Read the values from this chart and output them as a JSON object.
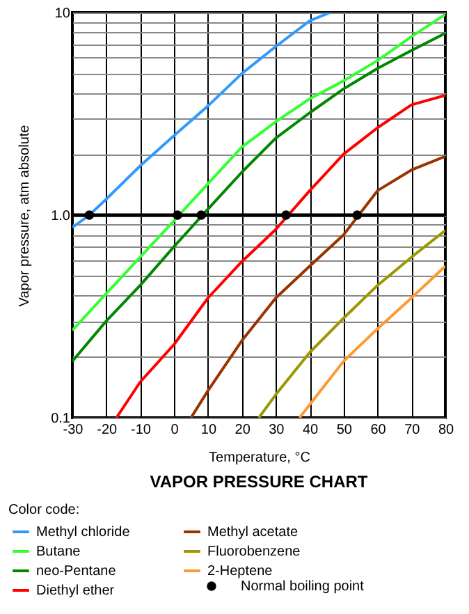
{
  "chart_data": {
    "type": "line",
    "title": "VAPOR PRESSURE CHART",
    "xlabel": "Temperature, °C",
    "ylabel": "Vapor pressure, atm absolute",
    "legend_title": "Color code:",
    "series": [
      {
        "name": "Methyl chloride",
        "color": "#3399ff",
        "x": [
          -30,
          -25,
          -20,
          -10,
          0,
          10,
          20,
          30,
          40,
          46
        ],
        "values": [
          0.87,
          1.0,
          1.2,
          1.75,
          2.47,
          3.46,
          5.0,
          6.8,
          9.1,
          10
        ]
      },
      {
        "name": "Butane",
        "color": "#33ff33",
        "x": [
          -30,
          -20,
          -10,
          0,
          10,
          20,
          30,
          40,
          50,
          60,
          70,
          80
        ],
        "values": [
          0.27,
          0.41,
          0.62,
          0.94,
          1.43,
          2.17,
          2.89,
          3.75,
          4.6,
          5.8,
          7.6,
          9.8
        ]
      },
      {
        "name": "neo-Pentane",
        "color": "#008800",
        "x": [
          -30,
          -20,
          -10,
          0,
          10,
          20,
          30,
          40,
          50,
          60,
          70,
          80
        ],
        "values": [
          0.19,
          0.3,
          0.45,
          0.7,
          1.07,
          1.63,
          2.4,
          3.2,
          4.2,
          5.3,
          6.5,
          7.9
        ]
      },
      {
        "name": "Diethyl ether",
        "color": "#ff0000",
        "x": [
          -17,
          -10,
          0,
          10,
          20,
          30,
          40,
          50,
          60,
          70,
          80
        ],
        "values": [
          0.1,
          0.15,
          0.23,
          0.39,
          0.59,
          0.85,
          1.32,
          2.0,
          2.7,
          3.5,
          3.9
        ]
      },
      {
        "name": "Methyl acetate",
        "color": "#993300",
        "x": [
          5,
          10,
          20,
          30,
          40,
          50,
          60,
          70,
          80
        ],
        "values": [
          0.1,
          0.136,
          0.24,
          0.39,
          0.56,
          0.8,
          1.32,
          1.67,
          1.95
        ]
      },
      {
        "name": "Fluorobenzene",
        "color": "#999900",
        "x": [
          25,
          30,
          40,
          50,
          60,
          70,
          80
        ],
        "values": [
          0.1,
          0.13,
          0.21,
          0.31,
          0.45,
          0.62,
          0.84
        ]
      },
      {
        "name": "2-Heptene",
        "color": "#ff9933",
        "x": [
          37,
          40,
          50,
          60,
          70,
          80
        ],
        "values": [
          0.1,
          0.116,
          0.19,
          0.275,
          0.39,
          0.56
        ]
      },
      {
        "name": "Normal boiling point",
        "type": "scatter",
        "color": "#000000",
        "marker": "circle",
        "x": [
          -25,
          1,
          8,
          33,
          54
        ],
        "values": [
          1,
          1,
          1,
          1,
          1
        ]
      }
    ],
    "xlim": [
      -30,
      80
    ],
    "xticks": [
      -30,
      -20,
      -10,
      0,
      10,
      20,
      30,
      40,
      50,
      60,
      70,
      80
    ],
    "ylim": [
      0.1,
      10
    ],
    "log": "y",
    "yticks": [
      0.1,
      {
        "value": 0.2,
        "label": null
      },
      {
        "value": 0.3,
        "label": null
      },
      {
        "value": 0.4,
        "label": null
      },
      {
        "value": 0.5,
        "label": null
      },
      {
        "value": 0.6,
        "label": null
      },
      {
        "value": 0.7,
        "label": null
      },
      {
        "value": 0.8,
        "label": null
      },
      {
        "value": 0.9,
        "label": null
      },
      {
        "value": 1,
        "label": "1.0"
      },
      {
        "value": 2,
        "label": null
      },
      {
        "value": 3,
        "label": null
      },
      {
        "value": 4,
        "label": null
      },
      {
        "value": 5,
        "label": null
      },
      {
        "value": 6,
        "label": null
      },
      {
        "value": 7,
        "label": null
      },
      {
        "value": 8,
        "label": null
      },
      {
        "value": 9,
        "label": null
      },
      10
    ],
    "ref_lines": [
      {
        "axis": "y",
        "value": 1,
        "color": "#000000"
      }
    ],
    "grid": true,
    "legend": "bottom",
    "line_style": "solid"
  }
}
